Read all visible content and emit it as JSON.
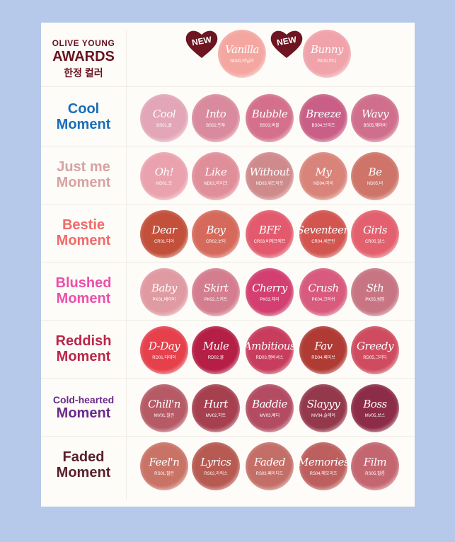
{
  "header": {
    "line1": "OLIVE YOUNG",
    "line2": "AWARDS",
    "line3": "한정 컬러",
    "badge_text": "NEW",
    "swatches": [
      {
        "name": "Vanilla",
        "code": "ND00,바닐라",
        "color": "#f4a7a0"
      },
      {
        "name": "Bunny",
        "code": "PK00,버니",
        "color": "#f0a3aa"
      }
    ]
  },
  "rows": [
    {
      "line1": "Cool",
      "line2": "Moment",
      "color": "#1a6db8",
      "swatches": [
        {
          "name": "Cool",
          "code": "BS01,쿨",
          "color": "#e2a6b8"
        },
        {
          "name": "Into",
          "code": "BS02,인투",
          "color": "#d98a9c"
        },
        {
          "name": "Bubble",
          "code": "BS03,버블",
          "color": "#d4708c"
        },
        {
          "name": "Breeze",
          "code": "BS04,브리즈",
          "color": "#c95f86"
        },
        {
          "name": "Wavy",
          "code": "BS05,웨이비",
          "color": "#cf6f8d"
        }
      ]
    },
    {
      "line1": "Just me",
      "line2": "Moment",
      "color": "#d8a2a2",
      "swatches": [
        {
          "name": "Oh!",
          "code": "ND01,오",
          "color": "#eaa2ae"
        },
        {
          "name": "Like",
          "code": "ND02,라이크",
          "color": "#e08f9a"
        },
        {
          "name": "Without",
          "code": "ND03,위드아웃",
          "color": "#cf8a8c"
        },
        {
          "name": "My",
          "code": "ND04,마이",
          "color": "#d9847a"
        },
        {
          "name": "Be",
          "code": "ND05,비",
          "color": "#ce7468"
        }
      ]
    },
    {
      "line1": "Bestie",
      "line2": "Moment",
      "color": "#ef6a6a",
      "swatches": [
        {
          "name": "Dear",
          "code": "CR01,디어",
          "color": "#c2503a"
        },
        {
          "name": "Boy",
          "code": "CR02,보이",
          "color": "#d56a5c"
        },
        {
          "name": "BFF",
          "code": "CR03,비에프에프",
          "color": "#e35a6e"
        },
        {
          "name": "Seventeen",
          "code": "CR04,세븐틴",
          "color": "#d25550"
        },
        {
          "name": "Girls",
          "code": "CR05,걸스",
          "color": "#e3616e"
        }
      ]
    },
    {
      "line1": "Blushed",
      "line2": "Moment",
      "color": "#ec4fa8",
      "swatches": [
        {
          "name": "Baby",
          "code": "PK01,베이비",
          "color": "#e09aa2"
        },
        {
          "name": "Skirt",
          "code": "PK02,스커트",
          "color": "#d47d8f"
        },
        {
          "name": "Cherry",
          "code": "PK03,체리",
          "color": "#d23f70"
        },
        {
          "name": "Crush",
          "code": "PK04,크러쉬",
          "color": "#d85a7c"
        },
        {
          "name": "Sth",
          "code": "PK05,썸띵",
          "color": "#c77583"
        }
      ]
    },
    {
      "line1": "Reddish",
      "line2": "Moment",
      "color": "#b8264a",
      "swatches": [
        {
          "name": "D-Day",
          "code": "RD01,디데이",
          "color": "#e6404c"
        },
        {
          "name": "Mule",
          "code": "RD02,뮬",
          "color": "#b51e45"
        },
        {
          "name": "Ambitious",
          "code": "RD03,앰비셔스",
          "color": "#c83d5e"
        },
        {
          "name": "Fav",
          "code": "RD04,페이브",
          "color": "#b03a34"
        },
        {
          "name": "Greedy",
          "code": "RD05,그리디",
          "color": "#cf4c60"
        }
      ]
    },
    {
      "line1": "Cold-hearted",
      "line2": "Moment",
      "color": "#6a2a8c",
      "swatches": [
        {
          "name": "Chill'n",
          "code": "MV01,칠린",
          "color": "#b65a66"
        },
        {
          "name": "Hurt",
          "code": "MV02,허트",
          "color": "#a6404f"
        },
        {
          "name": "Baddie",
          "code": "MV03,배디",
          "color": "#b34c63"
        },
        {
          "name": "Slayyy",
          "code": "MV04,슬레이",
          "color": "#94384c"
        },
        {
          "name": "Boss",
          "code": "MV05,보스",
          "color": "#8c2c48"
        }
      ]
    },
    {
      "line1": "Faded",
      "line2": "Moment",
      "color": "#5a1f2a",
      "swatches": [
        {
          "name": "Feel'n",
          "code": "RS01,필린",
          "color": "#c97366"
        },
        {
          "name": "Lyrics",
          "code": "RS02,리릭스",
          "color": "#b75a52"
        },
        {
          "name": "Faded",
          "code": "RS03,페이디드",
          "color": "#c36e66"
        },
        {
          "name": "Memories",
          "code": "RS04,메모리즈",
          "color": "#bd5f5e"
        },
        {
          "name": "Film",
          "code": "RS05,필름",
          "color": "#c46670"
        }
      ]
    }
  ]
}
